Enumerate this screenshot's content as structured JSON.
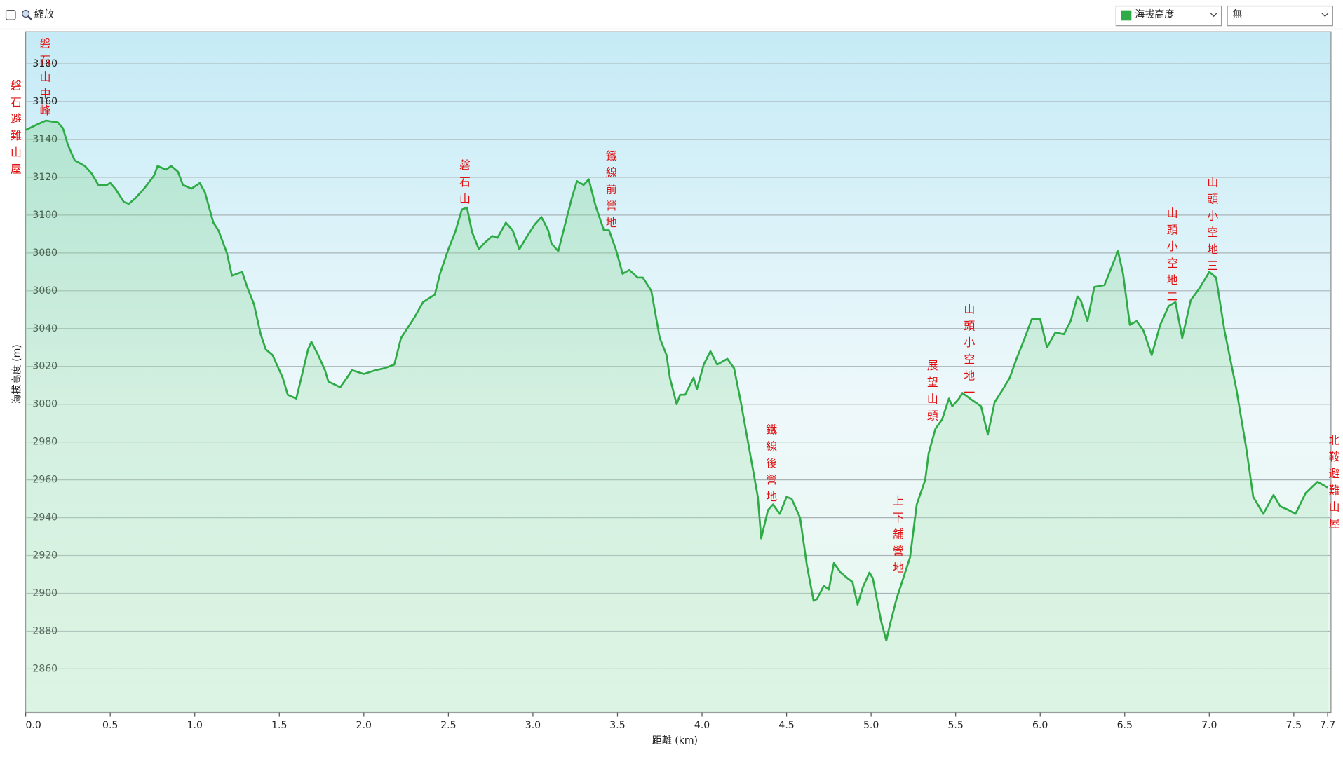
{
  "ui": {
    "zoom_label": "縮放",
    "series_select": "海拔高度",
    "overlay_select": "無"
  },
  "chart_data": {
    "type": "line",
    "xlabel": "距離 (km)",
    "ylabel": "海拔高度 (m)",
    "color": "#2eaa46",
    "grid": true,
    "x": [
      0,
      0.07,
      0.12,
      0.19,
      0.22,
      0.25,
      0.29,
      0.35,
      0.39,
      0.43,
      0.48,
      0.5,
      0.53,
      0.58,
      0.61,
      0.65,
      0.7,
      0.76,
      0.78,
      0.83,
      0.86,
      0.9,
      0.93,
      0.98,
      1.03,
      1.06,
      1.11,
      1.14,
      1.19,
      1.22,
      1.28,
      1.31,
      1.35,
      1.39,
      1.42,
      1.46,
      1.52,
      1.55,
      1.6,
      1.63,
      1.67,
      1.69,
      1.73,
      1.77,
      1.79,
      1.86,
      1.9,
      1.93,
      2.0,
      2.07,
      2.12,
      2.18,
      2.22,
      2.3,
      2.35,
      2.42,
      2.45,
      2.5,
      2.54,
      2.58,
      2.61,
      2.64,
      2.68,
      2.71,
      2.76,
      2.79,
      2.84,
      2.88,
      2.92,
      2.96,
      3.01,
      3.05,
      3.09,
      3.11,
      3.15,
      3.19,
      3.23,
      3.26,
      3.3,
      3.33,
      3.37,
      3.42,
      3.45,
      3.49,
      3.53,
      3.57,
      3.62,
      3.65,
      3.7,
      3.75,
      3.79,
      3.81,
      3.85,
      3.87,
      3.9,
      3.95,
      3.97,
      4.01,
      4.05,
      4.09,
      4.15,
      4.19,
      4.23,
      4.27,
      4.3,
      4.33,
      4.35,
      4.39,
      4.42,
      4.46,
      4.5,
      4.53,
      4.58,
      4.62,
      4.66,
      4.68,
      4.72,
      4.75,
      4.78,
      4.82,
      4.86,
      4.89,
      4.92,
      4.95,
      4.99,
      5.01,
      5.06,
      5.09,
      5.11,
      5.15,
      5.19,
      5.23,
      5.27,
      5.32,
      5.34,
      5.38,
      5.42,
      5.46,
      5.48,
      5.52,
      5.54,
      5.6,
      5.65,
      5.69,
      5.73,
      5.78,
      5.82,
      5.86,
      5.9,
      5.95,
      6.0,
      6.04,
      6.09,
      6.14,
      6.18,
      6.22,
      6.24,
      6.28,
      6.32,
      6.38,
      6.42,
      6.46,
      6.49,
      6.53,
      6.57,
      6.61,
      6.66,
      6.71,
      6.76,
      6.8,
      6.84,
      6.89,
      6.94,
      7.0,
      7.04,
      7.09,
      7.16,
      7.22,
      7.26,
      7.32,
      7.38,
      7.42,
      7.47,
      7.51,
      7.57,
      7.64,
      7.7
    ],
    "values": [
      3145,
      3148,
      3150,
      3149,
      3146,
      3137,
      3129,
      3126,
      3122,
      3116,
      3116,
      3117,
      3114,
      3107,
      3106,
      3109,
      3114,
      3121,
      3126,
      3124,
      3126,
      3123,
      3116,
      3114,
      3117,
      3112,
      3096,
      3092,
      3080,
      3068,
      3070,
      3062,
      3053,
      3037,
      3029,
      3026,
      3014,
      3005,
      3003,
      3014,
      3029,
      3033,
      3026,
      3018,
      3012,
      3009,
      3014,
      3018,
      3016,
      3018,
      3019,
      3021,
      3035,
      3046,
      3054,
      3058,
      3069,
      3082,
      3091,
      3103,
      3104,
      3091,
      3082,
      3085,
      3089,
      3088,
      3096,
      3092,
      3082,
      3088,
      3095,
      3099,
      3092,
      3085,
      3081,
      3095,
      3109,
      3118,
      3116,
      3119,
      3105,
      3092,
      3092,
      3082,
      3069,
      3071,
      3067,
      3067,
      3060,
      3035,
      3026,
      3014,
      3000,
      3005,
      3005,
      3014,
      3008,
      3021,
      3028,
      3021,
      3024,
      3019,
      3001,
      2981,
      2966,
      2951,
      2929,
      2944,
      2947,
      2942,
      2951,
      2950,
      2940,
      2915,
      2896,
      2897,
      2904,
      2902,
      2916,
      2911,
      2908,
      2906,
      2894,
      2903,
      2911,
      2908,
      2885,
      2875,
      2883,
      2897,
      2908,
      2919,
      2947,
      2960,
      2974,
      2987,
      2992,
      3003,
      2999,
      3003,
      3006,
      3002,
      2999,
      2984,
      3001,
      3008,
      3014,
      3024,
      3033,
      3045,
      3045,
      3030,
      3038,
      3037,
      3044,
      3057,
      3055,
      3044,
      3062,
      3063,
      3072,
      3081,
      3069,
      3042,
      3044,
      3039,
      3026,
      3042,
      3052,
      3054,
      3035,
      3055,
      3061,
      3070,
      3067,
      3039,
      3008,
      2976,
      2951,
      2942,
      2952,
      2946,
      2944,
      2942,
      2953,
      2959,
      2956
    ],
    "xlim": [
      0,
      7.72
    ],
    "ylim": [
      2837,
      3197
    ],
    "xticks": [
      {
        "value": 0,
        "label": "0.0"
      },
      0.5,
      {
        "value": 1,
        "label": "1.0"
      },
      1.5,
      {
        "value": 2,
        "label": "2.0"
      },
      2.5,
      {
        "value": 3,
        "label": "3.0"
      },
      3.5,
      {
        "value": 4,
        "label": "4.0"
      },
      4.5,
      {
        "value": 5,
        "label": "5.0"
      },
      5.5,
      {
        "value": 6,
        "label": "6.0"
      },
      6.5,
      {
        "value": 7,
        "label": "7.0"
      },
      7.5,
      7.7
    ],
    "yticks": [
      2860,
      2880,
      2900,
      2920,
      2940,
      2960,
      2980,
      3000,
      3020,
      3040,
      3060,
      3080,
      3100,
      3120,
      3140,
      3160,
      3180
    ],
    "annotations": [
      "磐石避難山屋",
      "磐石山中峰",
      "磐石山",
      "鐵線前營地",
      "鐵線後營地",
      "上下舖營地",
      "展望山頭",
      "山頭小空地一",
      "山頭小空地二",
      "山頭小空地三",
      "北鞍避難山屋"
    ]
  }
}
